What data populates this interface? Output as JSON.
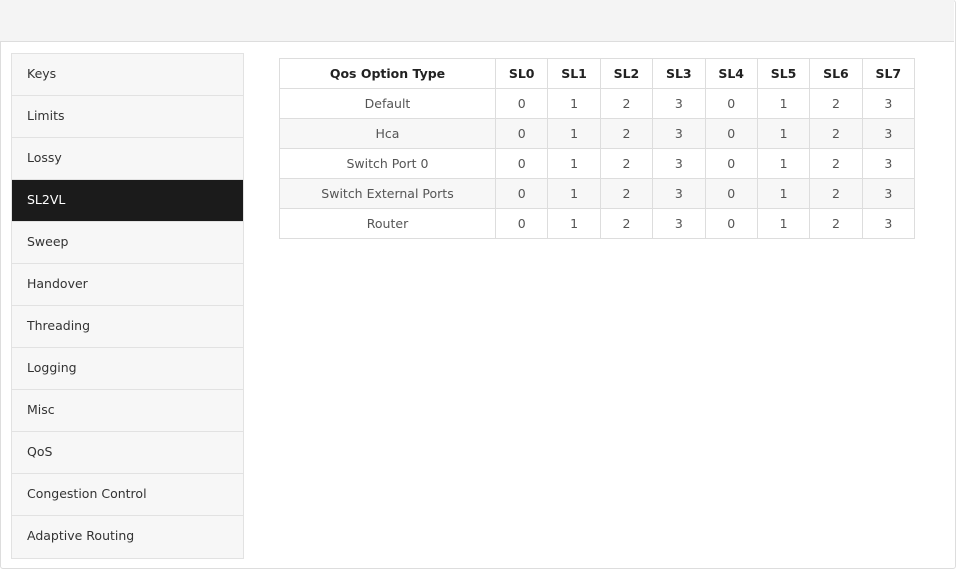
{
  "sidebar": {
    "items": [
      {
        "label": "Keys"
      },
      {
        "label": "Limits"
      },
      {
        "label": "Lossy"
      },
      {
        "label": "SL2VL",
        "active": true
      },
      {
        "label": "Sweep"
      },
      {
        "label": "Handover"
      },
      {
        "label": "Threading"
      },
      {
        "label": "Logging"
      },
      {
        "label": "Misc"
      },
      {
        "label": "QoS"
      },
      {
        "label": "Congestion Control"
      },
      {
        "label": "Adaptive Routing"
      }
    ]
  },
  "table": {
    "headers": [
      "Qos Option Type",
      "SL0",
      "SL1",
      "SL2",
      "SL3",
      "SL4",
      "SL5",
      "SL6",
      "SL7"
    ],
    "rows": [
      [
        "Default",
        "0",
        "1",
        "2",
        "3",
        "0",
        "1",
        "2",
        "3"
      ],
      [
        "Hca",
        "0",
        "1",
        "2",
        "3",
        "0",
        "1",
        "2",
        "3"
      ],
      [
        "Switch Port 0",
        "0",
        "1",
        "2",
        "3",
        "0",
        "1",
        "2",
        "3"
      ],
      [
        "Switch External Ports",
        "0",
        "1",
        "2",
        "3",
        "0",
        "1",
        "2",
        "3"
      ],
      [
        "Router",
        "0",
        "1",
        "2",
        "3",
        "0",
        "1",
        "2",
        "3"
      ]
    ]
  }
}
